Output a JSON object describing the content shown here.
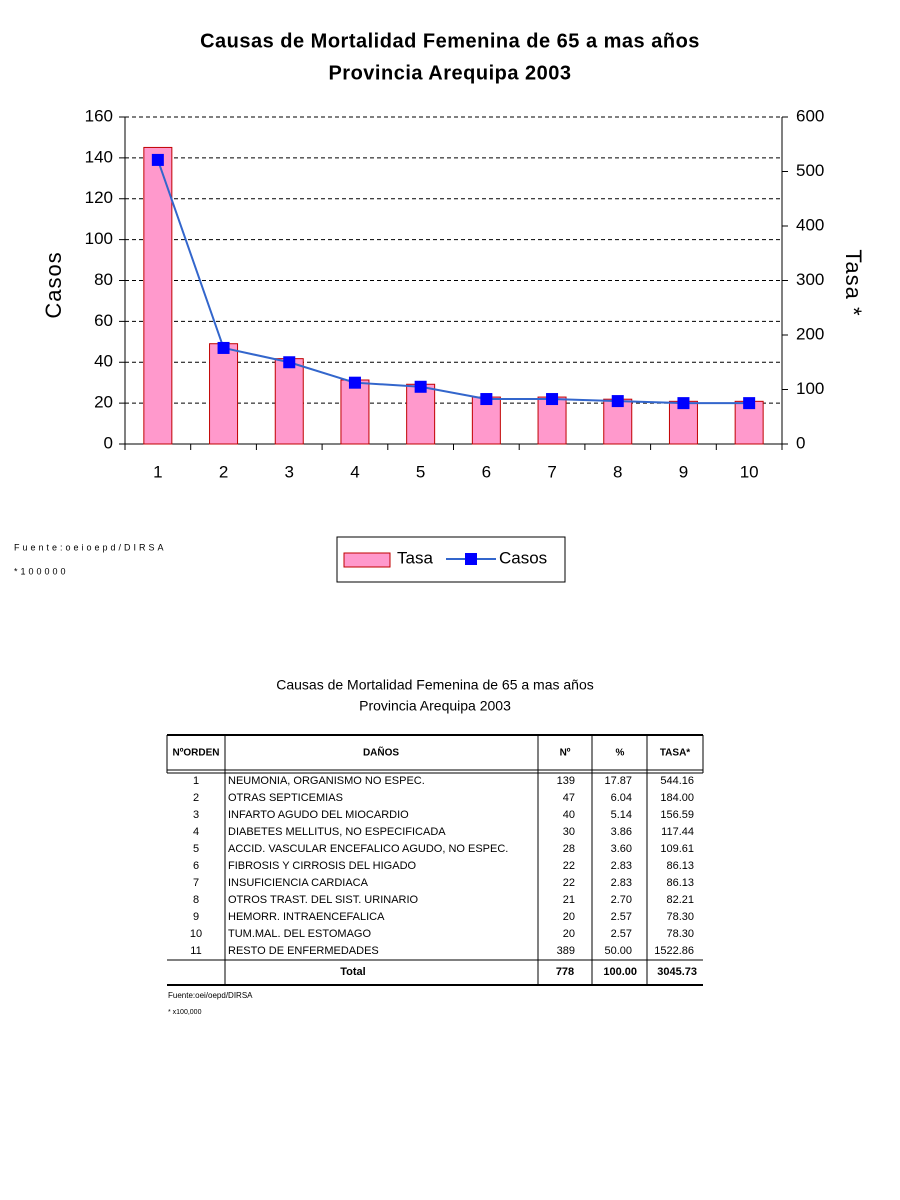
{
  "chart_data": {
    "type": "combo",
    "title": "Causas de Mortalidad Femenina de 65 a mas años",
    "subtitle": "Provincia Arequipa 2003",
    "y_label": "Casos",
    "y2_label": "Tasa *",
    "categories": [
      "1",
      "2",
      "3",
      "4",
      "5",
      "6",
      "7",
      "8",
      "9",
      "10"
    ],
    "series": [
      {
        "name": "Tasa",
        "type": "bar",
        "axis": "y2",
        "color": "#ff99cc",
        "values": [
          544.16,
          184.0,
          156.59,
          117.44,
          109.61,
          86.13,
          86.13,
          82.21,
          78.3,
          78.3
        ]
      },
      {
        "name": "Casos",
        "type": "line",
        "color": "#3366cc",
        "marker_color": "#0000ff",
        "values": [
          139,
          47,
          40,
          30,
          28,
          22,
          22,
          21,
          20,
          20
        ]
      }
    ],
    "ylim": [
      0,
      160
    ],
    "yticks": [
      0,
      20,
      40,
      60,
      80,
      100,
      120,
      140,
      160
    ],
    "y2lim": [
      0,
      600
    ],
    "y2ticks": [
      0,
      100,
      200,
      300,
      400,
      500,
      600
    ],
    "grid": true,
    "legend": "bottom"
  },
  "chart_notes": [
    "Fuente:oeioepd/DIRSA",
    "*100000"
  ],
  "table": {
    "title": [
      "Causas de Mortalidad Femenina de 65 a mas años",
      "Provincia Arequipa 2003"
    ],
    "header": [
      "NºORDEN",
      "DAÑOS",
      "Nº",
      "%",
      "TASA*"
    ],
    "rows": [
      [
        "1",
        "NEUMONIA, ORGANISMO NO ESPEC.",
        "139",
        "17.87",
        "544.16"
      ],
      [
        "2",
        "OTRAS SEPTICEMIAS",
        "47",
        "6.04",
        "184.00"
      ],
      [
        "3",
        "INFARTO AGUDO DEL MIOCARDIO",
        "40",
        "5.14",
        "156.59"
      ],
      [
        "4",
        "DIABETES MELLITUS, NO ESPECIFICADA",
        "30",
        "3.86",
        "117.44"
      ],
      [
        "5",
        "ACCID. VASCULAR ENCEFALICO AGUDO, NO ESPEC.",
        "28",
        "3.60",
        "109.61"
      ],
      [
        "6",
        "FIBROSIS Y CIRROSIS DEL HIGADO",
        "22",
        "2.83",
        "86.13"
      ],
      [
        "7",
        "INSUFICIENCIA CARDIACA",
        "22",
        "2.83",
        "86.13"
      ],
      [
        "8",
        "OTROS TRAST. DEL SIST. URINARIO",
        "21",
        "2.70",
        "82.21"
      ],
      [
        "9",
        "HEMORR. INTRAENCEFALICA",
        "20",
        "2.57",
        "78.30"
      ],
      [
        "10",
        "TUM.MAL. DEL ESTOMAGO",
        "20",
        "2.57",
        "78.30"
      ],
      [
        "11",
        "RESTO DE ENFERMEDADES",
        "389",
        "50.00",
        "1522.86"
      ]
    ],
    "total": [
      "Total",
      "778",
      "100.00",
      "3045.73"
    ],
    "notes": [
      "Fuente:oei/oepd/DIRSA",
      "* x100,000"
    ]
  }
}
